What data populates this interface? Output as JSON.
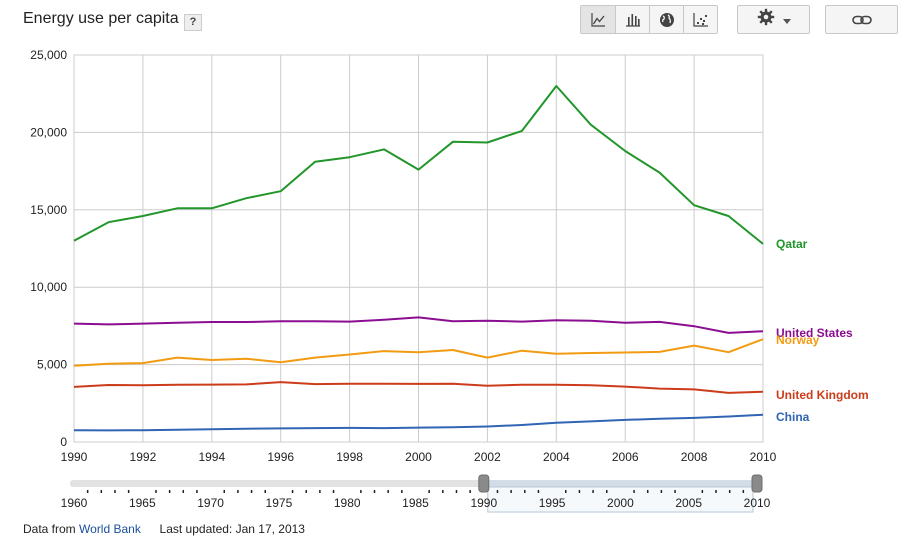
{
  "header": {
    "title": "Energy use per capita",
    "help_label": "?",
    "chart_types": [
      {
        "icon": "line-chart-icon",
        "active": true
      },
      {
        "icon": "bar-chart-icon",
        "active": false
      },
      {
        "icon": "globe-map-icon",
        "active": false
      },
      {
        "icon": "scatter-chart-icon",
        "active": false
      }
    ],
    "settings_icon": "gear-icon",
    "settings_dropdown_icon": "caret-down-icon",
    "link_icon": "link-icon"
  },
  "footer": {
    "source_prefix": "Data from",
    "source_link": "World Bank",
    "updated": "Last updated: Jan 17, 2013"
  },
  "chart_data": {
    "type": "line",
    "title": "",
    "xlabel": "",
    "ylabel": "",
    "xlim": [
      1990,
      2010
    ],
    "ylim": [
      0,
      25000
    ],
    "x_ticks": [
      1990,
      1992,
      1994,
      1996,
      1998,
      2000,
      2002,
      2004,
      2006,
      2008,
      2010
    ],
    "y_ticks": [
      "0",
      "5,000",
      "10,000",
      "15,000",
      "20,000",
      "25,000"
    ],
    "y_tick_values": [
      0,
      5000,
      10000,
      15000,
      20000,
      25000
    ],
    "grid": true,
    "legend": "right, labels at line ends",
    "x": [
      1990,
      1991,
      1992,
      1993,
      1994,
      1995,
      1996,
      1997,
      1998,
      1999,
      2000,
      2001,
      2002,
      2003,
      2004,
      2005,
      2006,
      2007,
      2008,
      2009,
      2010
    ],
    "series": [
      {
        "name": "Qatar",
        "color": "#22962a",
        "values": [
          13000,
          14200,
          14600,
          15100,
          15100,
          15750,
          16200,
          18100,
          18400,
          18900,
          17600,
          19400,
          19350,
          20100,
          23000,
          20500,
          18800,
          17400,
          15300,
          14600,
          12800
        ]
      },
      {
        "name": "United States",
        "color": "#8b0d91",
        "values": [
          7650,
          7600,
          7650,
          7700,
          7750,
          7750,
          7800,
          7800,
          7780,
          7900,
          8050,
          7800,
          7830,
          7780,
          7860,
          7830,
          7700,
          7760,
          7480,
          7050,
          7160
        ]
      },
      {
        "name": "Norway",
        "color": "#f29b12",
        "values": [
          4920,
          5050,
          5100,
          5450,
          5300,
          5380,
          5150,
          5450,
          5650,
          5870,
          5800,
          5940,
          5450,
          5900,
          5700,
          5750,
          5780,
          5820,
          6230,
          5800,
          6640
        ]
      },
      {
        "name": "United Kingdom",
        "color": "#cc3c1b",
        "values": [
          3560,
          3680,
          3670,
          3700,
          3710,
          3720,
          3870,
          3740,
          3760,
          3760,
          3750,
          3760,
          3640,
          3700,
          3700,
          3660,
          3580,
          3450,
          3400,
          3170,
          3240
        ]
      },
      {
        "name": "China",
        "color": "#3064b4",
        "values": [
          760,
          750,
          760,
          790,
          820,
          860,
          880,
          900,
          910,
          900,
          930,
          950,
          1000,
          1100,
          1240,
          1330,
          1430,
          1500,
          1560,
          1650,
          1760
        ]
      }
    ]
  },
  "time_slider": {
    "ticks": [
      "1960",
      "1965",
      "1970",
      "1975",
      "1980",
      "1985",
      "1990",
      "1995",
      "2000",
      "2005",
      "2010"
    ],
    "tick_values": [
      1960,
      1965,
      1970,
      1975,
      1980,
      1985,
      1990,
      1995,
      2000,
      2005,
      2010
    ],
    "range": [
      1960,
      2010
    ],
    "selected": [
      1990,
      2010
    ]
  }
}
